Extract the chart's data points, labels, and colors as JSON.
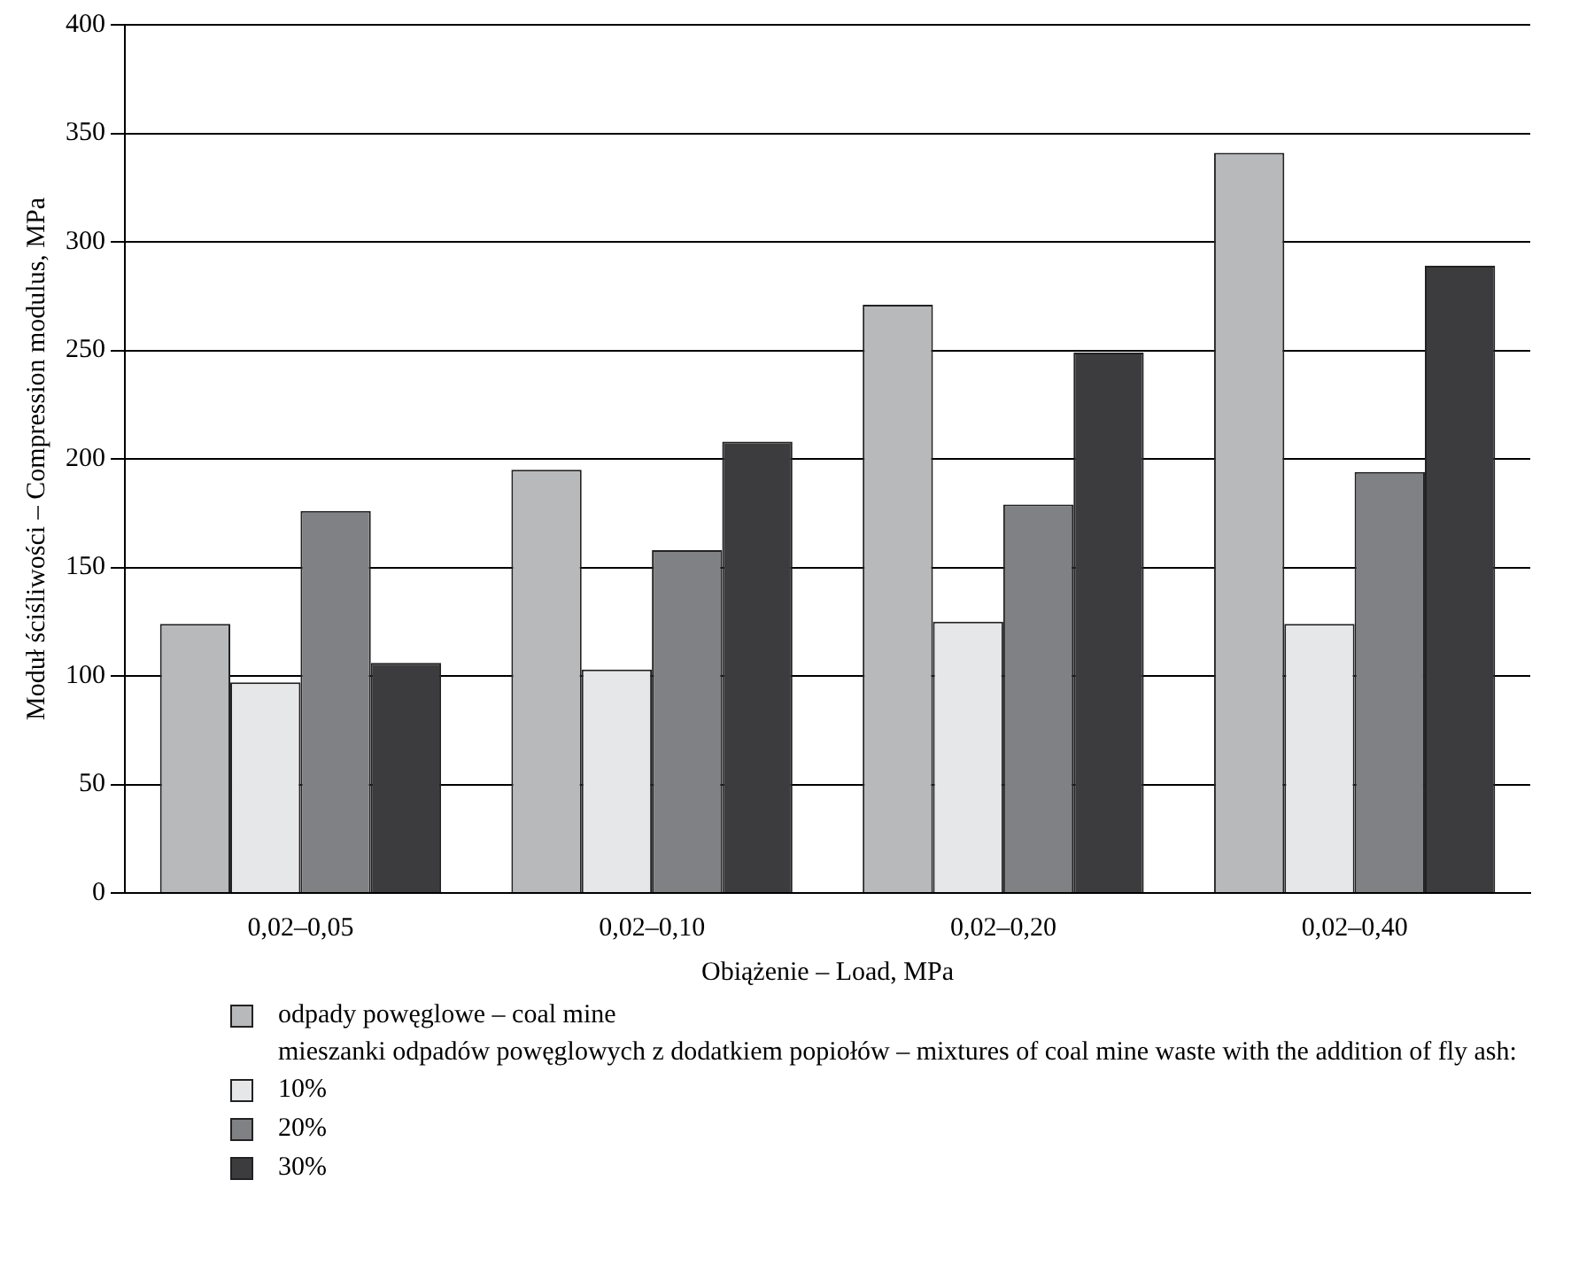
{
  "chart_data": {
    "type": "bar",
    "xlabel": "Obiążenie – Load, MPa",
    "ylabel": "Moduł ściśliwości – Compression modulus, MPa",
    "categories": [
      "0,02–0,05",
      "0,02–0,10",
      "0,02–0,20",
      "0,02–0,40"
    ],
    "series": [
      {
        "name": "odpady powęglowe – coal mine",
        "color": "#b8b9bb",
        "values": [
          124,
          195,
          271,
          341
        ]
      },
      {
        "name": "10%",
        "color": "#e6e7e9",
        "values": [
          97,
          103,
          125,
          124
        ]
      },
      {
        "name": "20%",
        "color": "#808184",
        "values": [
          176,
          158,
          179,
          194
        ]
      },
      {
        "name": "30%",
        "color": "#3c3c3e",
        "values": [
          106,
          208,
          249,
          289
        ]
      }
    ],
    "legend_title": "mieszanki odpadów powęglowych z dodatkiem popiołów – mixtures of coal mine waste with the addition of fly ash:",
    "ylim": [
      0,
      400
    ],
    "yticks": [
      0,
      50,
      100,
      150,
      200,
      250,
      300,
      350,
      400
    ],
    "grid": "y",
    "legend": "bottom"
  }
}
